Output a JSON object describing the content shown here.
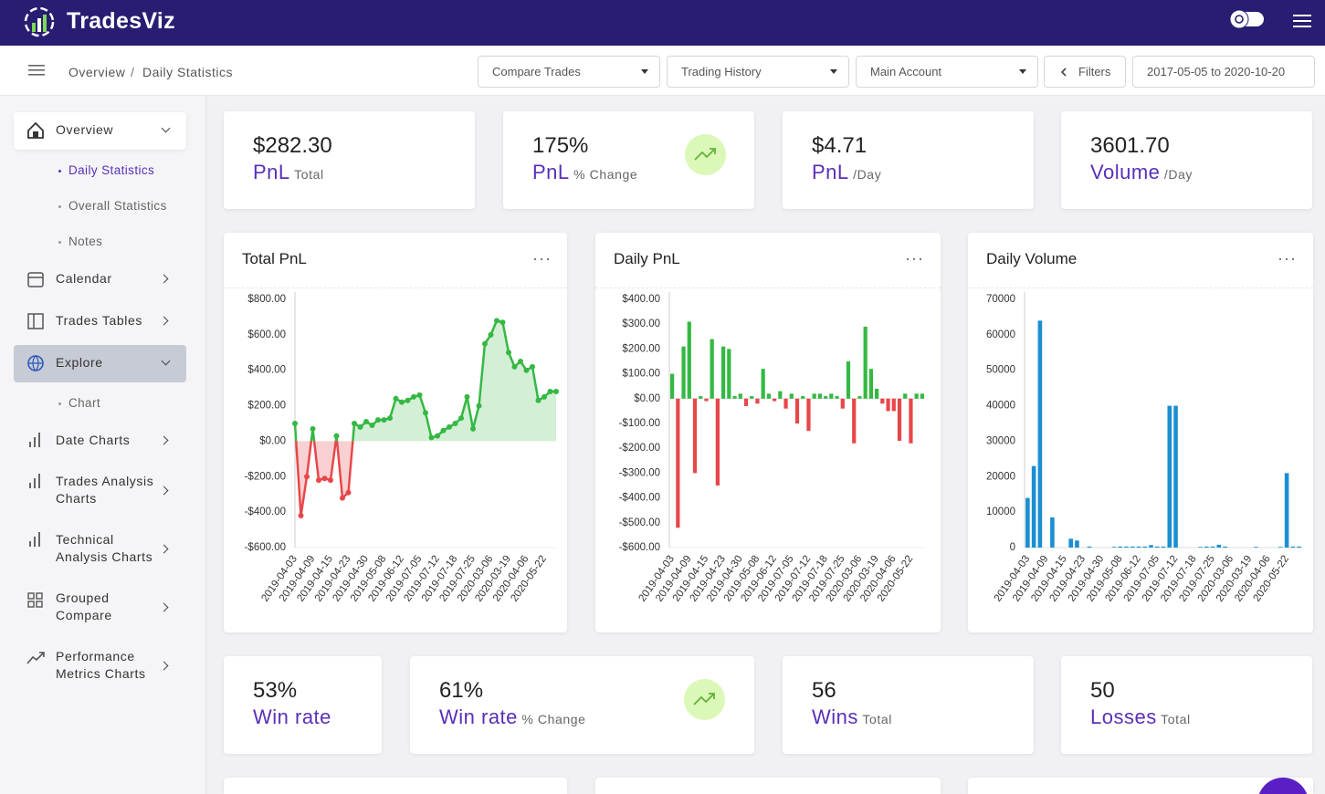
{
  "header": {
    "brand": "TradesViz"
  },
  "toolbar": {
    "breadcrumb": [
      "Overview",
      "Daily Statistics"
    ],
    "dropdowns": [
      "Compare Trades",
      "Trading History",
      "Main Account"
    ],
    "filters": "Filters",
    "date_range": "2017-05-05 to 2020-10-20"
  },
  "sidebar": {
    "items": [
      {
        "label": "Overview",
        "children": [
          "Daily Statistics",
          "Overall Statistics",
          "Notes"
        ]
      },
      {
        "label": "Calendar"
      },
      {
        "label": "Trades Tables"
      },
      {
        "label": "Explore",
        "children": [
          "Chart"
        ]
      },
      {
        "label": "Date Charts"
      },
      {
        "label": "Trades Analysis Charts"
      },
      {
        "label": "Technical Analysis Charts"
      },
      {
        "label": "Grouped Compare"
      },
      {
        "label": "Performance Metrics Charts"
      }
    ]
  },
  "stats_top": [
    {
      "value": "$282.30",
      "label": "PnL",
      "sub": "Total"
    },
    {
      "value": "175%",
      "label": "PnL",
      "sub": "% Change"
    },
    {
      "value": "$4.71",
      "label": "PnL",
      "sub": "/Day"
    },
    {
      "value": "3601.70",
      "label": "Volume",
      "sub": "/Day"
    }
  ],
  "stats_bottom": [
    {
      "value": "53%",
      "label": "Win rate"
    },
    {
      "value": "61%",
      "label": "Win rate",
      "sub": "% Change"
    },
    {
      "value": "56",
      "label": "Wins",
      "sub": "Total"
    },
    {
      "value": "50",
      "label": "Losses",
      "sub": "Total"
    }
  ],
  "chart_data": [
    {
      "type": "line",
      "title": "Total PnL",
      "categories": [
        "2019-04-03",
        null,
        null,
        "2019-04-09",
        null,
        null,
        "2019-04-15",
        null,
        null,
        "2019-04-23",
        null,
        null,
        "2019-04-30",
        null,
        null,
        "2019-05-08",
        null,
        null,
        "2019-06-12",
        null,
        null,
        "2019-07-05",
        null,
        null,
        "2019-07-12",
        null,
        null,
        "2019-07-18",
        null,
        null,
        "2019-07-25",
        null,
        null,
        "2020-03-06",
        null,
        null,
        "2020-03-19",
        null,
        null,
        "2020-04-06",
        null,
        null,
        "2020-05-22",
        null,
        null
      ],
      "values": [
        100,
        -420,
        -200,
        70,
        -220,
        -210,
        -220,
        30,
        -320,
        -290,
        100,
        80,
        110,
        90,
        120,
        120,
        130,
        240,
        220,
        230,
        250,
        260,
        160,
        20,
        30,
        60,
        80,
        100,
        130,
        250,
        70,
        200,
        550,
        600,
        680,
        670,
        500,
        420,
        450,
        400,
        420,
        230,
        250,
        280,
        280
      ],
      "colors": {
        "positive": "#35b843",
        "negative": "#e8474a"
      },
      "ylim": [
        -600,
        800
      ],
      "yticks": [
        {
          "value": 800,
          "label": "$800.00"
        },
        {
          "value": 600,
          "label": "$600.00"
        },
        {
          "value": 400,
          "label": "$400.00"
        },
        {
          "value": 200,
          "label": "$200.00"
        },
        {
          "value": 0,
          "label": "$0.00"
        },
        {
          "value": -200,
          "label": "-$200.00"
        },
        {
          "value": -400,
          "label": "-$400.00"
        },
        {
          "value": -600,
          "label": "-$600.00"
        }
      ],
      "grid": false
    },
    {
      "type": "bar",
      "title": "Daily PnL",
      "categories": [
        "2019-04-03",
        null,
        null,
        "2019-04-09",
        null,
        null,
        "2019-04-15",
        null,
        null,
        "2019-04-23",
        null,
        null,
        "2019-04-30",
        null,
        null,
        "2019-05-08",
        null,
        null,
        "2019-06-12",
        null,
        null,
        "2019-07-05",
        null,
        null,
        "2019-07-12",
        null,
        null,
        "2019-07-18",
        null,
        null,
        "2019-07-25",
        null,
        null,
        "2020-03-06",
        null,
        null,
        "2020-03-19",
        null,
        null,
        "2020-04-06",
        null,
        null,
        "2020-05-22",
        null,
        null
      ],
      "values": [
        100,
        -520,
        210,
        310,
        -300,
        10,
        -10,
        240,
        -350,
        210,
        200,
        10,
        20,
        -30,
        10,
        -20,
        120,
        20,
        -10,
        30,
        -40,
        20,
        -100,
        10,
        -130,
        20,
        20,
        10,
        20,
        10,
        -40,
        150,
        -180,
        10,
        290,
        120,
        40,
        -20,
        -50,
        -50,
        -170,
        20,
        -180,
        20,
        20
      ],
      "colors": {
        "positive": "#35b843",
        "negative": "#e8474a"
      },
      "ylim": [
        -600,
        400
      ],
      "yticks": [
        {
          "value": 400,
          "label": "$400.00"
        },
        {
          "value": 300,
          "label": "$300.00"
        },
        {
          "value": 200,
          "label": "$200.00"
        },
        {
          "value": 100,
          "label": "$100.00"
        },
        {
          "value": 0,
          "label": "$0.00"
        },
        {
          "value": -100,
          "label": "-$100.00"
        },
        {
          "value": -200,
          "label": "-$200.00"
        },
        {
          "value": -300,
          "label": "-$300.00"
        },
        {
          "value": -400,
          "label": "-$400.00"
        },
        {
          "value": -500,
          "label": "-$500.00"
        },
        {
          "value": -600,
          "label": "-$600.00"
        }
      ],
      "grid": false
    },
    {
      "type": "bar",
      "title": "Daily Volume",
      "categories": [
        "2019-04-03",
        null,
        null,
        "2019-04-09",
        null,
        null,
        "2019-04-15",
        null,
        null,
        "2019-04-23",
        null,
        null,
        "2019-04-30",
        null,
        null,
        "2019-05-08",
        null,
        null,
        "2019-06-12",
        null,
        null,
        "2019-07-05",
        null,
        null,
        "2019-07-12",
        null,
        null,
        "2019-07-18",
        null,
        null,
        "2019-07-25",
        null,
        null,
        "2020-03-06",
        null,
        null,
        "2020-03-19",
        null,
        null,
        "2020-04-06",
        null,
        null,
        "2020-05-22",
        null,
        null
      ],
      "values": [
        14000,
        23000,
        64000,
        0,
        8500,
        0,
        0,
        2500,
        2000,
        0,
        300,
        0,
        0,
        0,
        200,
        300,
        300,
        300,
        300,
        300,
        700,
        300,
        300,
        40000,
        40000,
        0,
        0,
        0,
        200,
        300,
        300,
        800,
        300,
        0,
        0,
        0,
        0,
        200,
        0,
        0,
        0,
        200,
        21000,
        300,
        300
      ],
      "colors": {
        "positive": "#1b8fd2",
        "negative": "#1b8fd2"
      },
      "ylim": [
        0,
        70000
      ],
      "yticks": [
        70000,
        60000,
        50000,
        40000,
        30000,
        20000,
        10000,
        0
      ],
      "grid": false
    }
  ]
}
